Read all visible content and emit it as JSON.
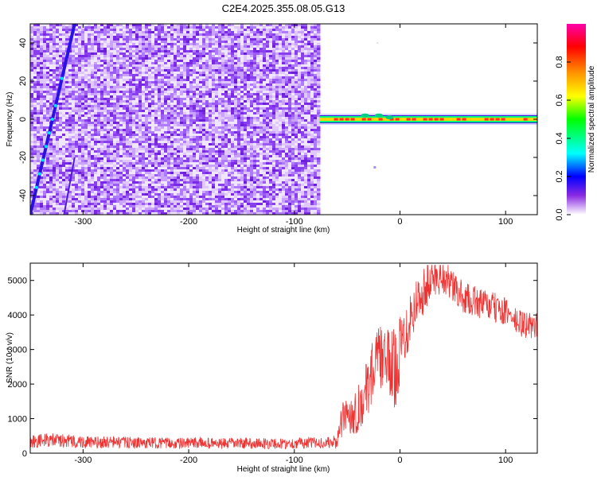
{
  "title": "C2E4.2025.355.08.05.G13",
  "chart_data": [
    {
      "type": "heatmap",
      "name": "spectrogram",
      "xlabel": "Height of straight line (km)",
      "ylabel": "Frequency (Hz)",
      "xlim": [
        -350,
        130
      ],
      "ylim": [
        -50,
        50
      ],
      "xticks": [
        -300,
        -200,
        -100,
        0,
        100
      ],
      "xtick_labels": [
        "-300",
        "-200",
        "-100",
        "0",
        "100"
      ],
      "yticks": [
        -40,
        -20,
        0,
        20,
        40
      ],
      "ytick_labels": [
        "-40",
        "-20",
        "0",
        "20",
        "40"
      ],
      "noise_region_x": [
        -350,
        -76
      ],
      "tone_frequency_hz": 0,
      "tone_region_x": [
        -76,
        130
      ],
      "diagonal_line": {
        "x_start": -350,
        "f_start": -50,
        "x_end": -308,
        "f_end": 50
      },
      "colorbar": {
        "label": "Normalized spectral amplitude",
        "range": [
          0,
          1
        ],
        "ticks": [
          0,
          0.2,
          0.4,
          0.6,
          0.8
        ],
        "tick_labels": [
          "0.0",
          "0.2",
          "0.4",
          "0.6",
          "0.8"
        ],
        "colors": [
          "#ffffff",
          "#8a2be2",
          "#0000ff",
          "#00ffff",
          "#00ff00",
          "#ffff00",
          "#ff8c00",
          "#ff0000",
          "#ff00aa"
        ]
      }
    },
    {
      "type": "line",
      "name": "snr",
      "xlabel": "Height of straight line (km)",
      "ylabel": "SNR (10 * v/v)",
      "xlim": [
        -350,
        130
      ],
      "ylim": [
        0,
        5500
      ],
      "xticks": [
        -300,
        -200,
        -100,
        0,
        100
      ],
      "xtick_labels": [
        "-300",
        "-200",
        "-100",
        "0",
        "100"
      ],
      "yticks": [
        0,
        1000,
        2000,
        3000,
        4000,
        5000
      ],
      "ytick_labels": [
        "0",
        "1000",
        "2000",
        "3000",
        "4000",
        "5000"
      ],
      "color": "#ee3333",
      "series": [
        {
          "name": "SNR",
          "x": [
            -350,
            -330,
            -310,
            -290,
            -270,
            -250,
            -230,
            -210,
            -190,
            -170,
            -150,
            -130,
            -110,
            -90,
            -70,
            -60,
            -55,
            -50,
            -45,
            -40,
            -35,
            -30,
            -25,
            -20,
            -15,
            -10,
            -5,
            0,
            5,
            10,
            15,
            20,
            25,
            30,
            35,
            40,
            45,
            50,
            60,
            70,
            80,
            90,
            100,
            110,
            120,
            130
          ],
          "values": [
            350,
            380,
            340,
            300,
            320,
            290,
            300,
            280,
            300,
            270,
            290,
            280,
            270,
            300,
            300,
            320,
            900,
            1200,
            1100,
            1300,
            1500,
            2000,
            2500,
            2800,
            2700,
            2600,
            2400,
            3000,
            3500,
            4000,
            4300,
            4600,
            4800,
            5000,
            5100,
            5150,
            5000,
            4800,
            4500,
            4400,
            4300,
            4200,
            4100,
            3800,
            3700,
            3700
          ],
          "spread": [
            200,
            200,
            200,
            180,
            180,
            160,
            160,
            160,
            160,
            160,
            160,
            160,
            160,
            160,
            160,
            200,
            500,
            600,
            600,
            700,
            700,
            900,
            900,
            900,
            900,
            1000,
            1200,
            1000,
            900,
            800,
            800,
            700,
            700,
            600,
            600,
            500,
            500,
            500,
            450,
            450,
            450,
            450,
            400,
            400,
            400,
            400
          ]
        }
      ]
    }
  ]
}
